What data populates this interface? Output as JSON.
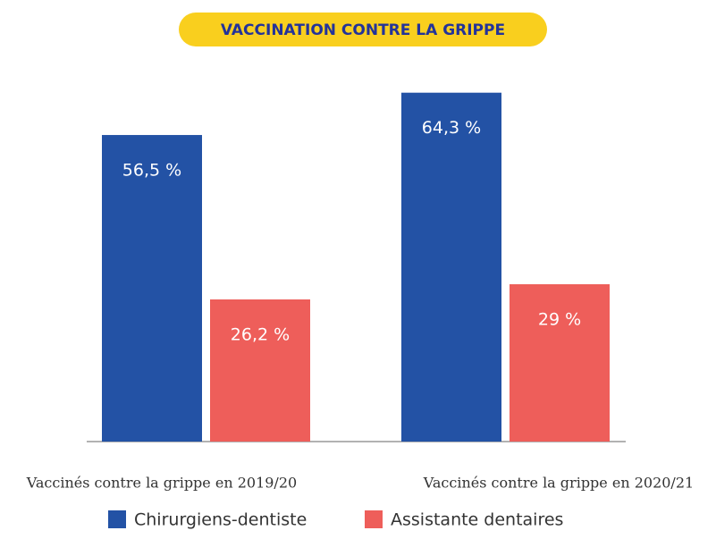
{
  "chart_data": {
    "type": "bar",
    "title": "VACCINATION CONTRE LA GRIPPE",
    "categories": [
      "Vaccinés contre la grippe en 2019/20",
      "Vaccinés contre la grippe en 2020/21"
    ],
    "series": [
      {
        "name": "Chirurgiens-dentiste",
        "color": "#2352a5",
        "values": [
          56.5,
          64.3
        ],
        "value_labels": [
          "56,5 %",
          "64,3 %"
        ]
      },
      {
        "name": "Assistante dentaires",
        "color": "#ee5e5a",
        "values": [
          26.2,
          29
        ],
        "value_labels": [
          "26,2 %",
          "29 %"
        ]
      }
    ]
  }
}
